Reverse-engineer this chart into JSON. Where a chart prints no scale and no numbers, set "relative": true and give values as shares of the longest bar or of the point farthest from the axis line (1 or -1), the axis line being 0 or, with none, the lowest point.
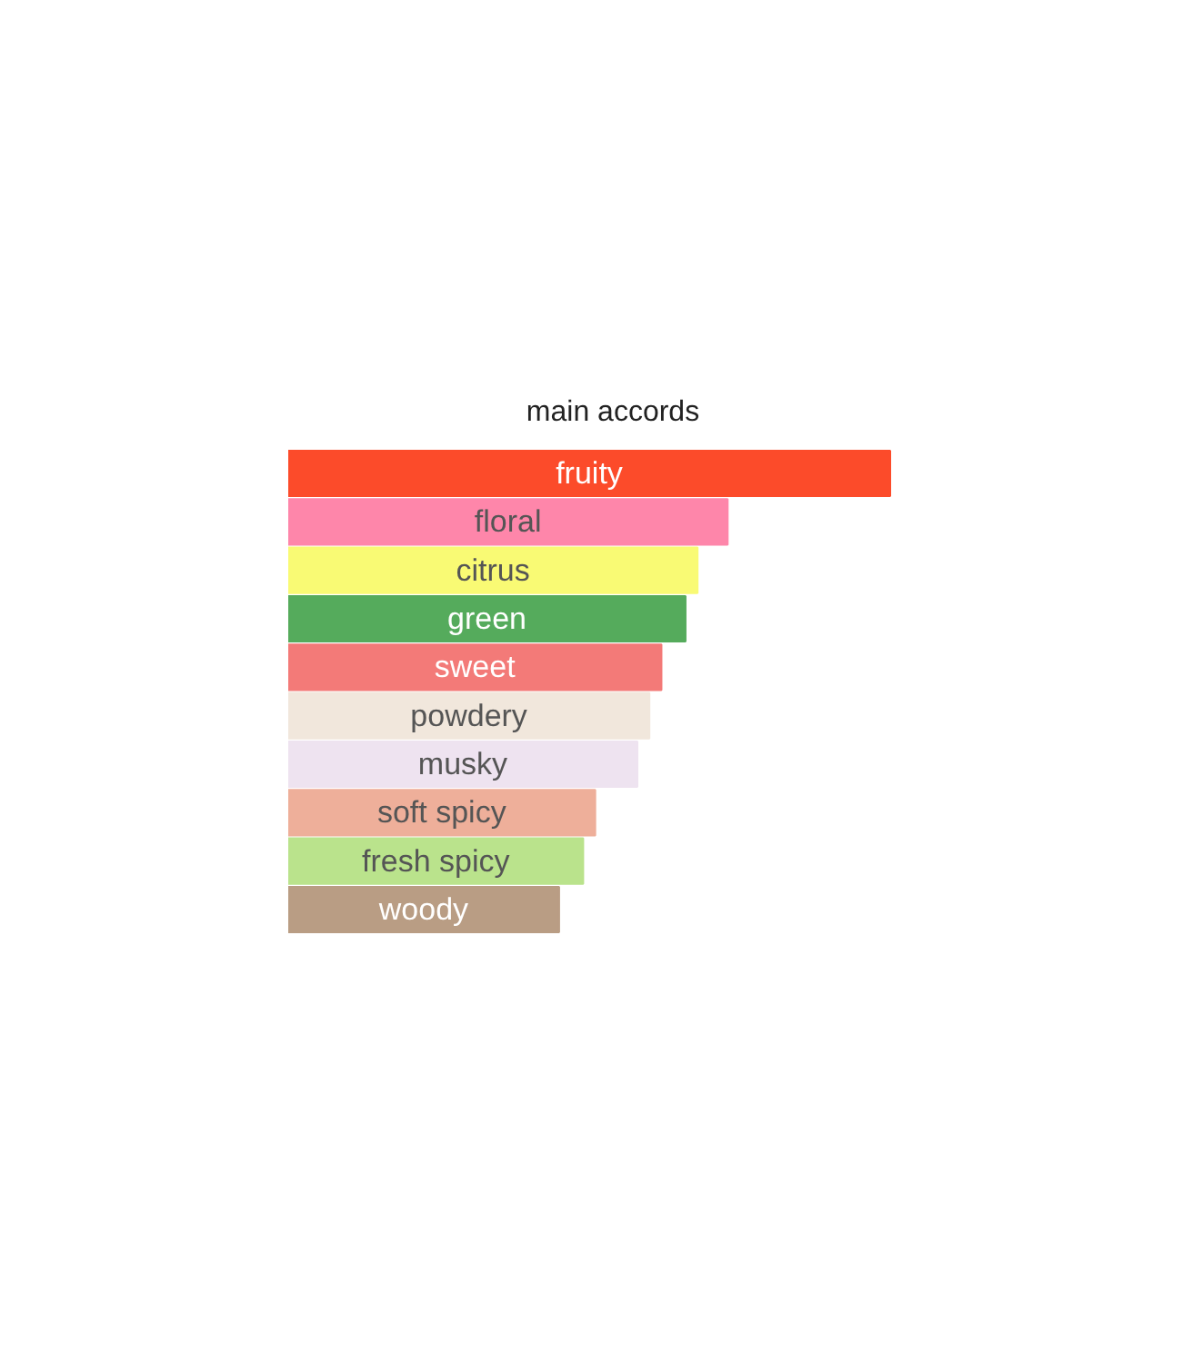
{
  "chart_data": {
    "type": "bar",
    "orientation": "horizontal",
    "relative": true,
    "title": "main accords",
    "categories": [
      "fruity",
      "floral",
      "citrus",
      "green",
      "sweet",
      "powdery",
      "musky",
      "soft spicy",
      "fresh spicy",
      "woody"
    ],
    "values": [
      1,
      0.73,
      0.68,
      0.66,
      0.62,
      0.6,
      0.58,
      0.51,
      0.49,
      0.45
    ],
    "colors": [
      "#fc4b2a",
      "#fe86aa",
      "#f9fa74",
      "#55ab5c",
      "#f37a78",
      "#f1e7dc",
      "#eee3f0",
      "#eeaf9a",
      "#bae38c",
      "#b99d84"
    ],
    "grid": false
  }
}
